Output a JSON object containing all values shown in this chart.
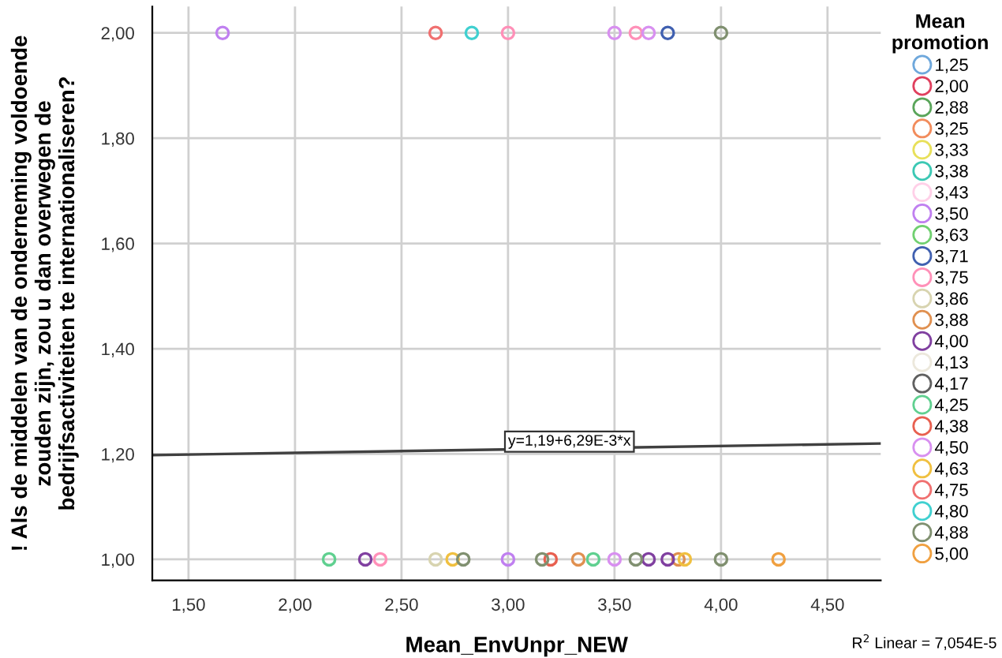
{
  "chart_data": {
    "type": "scatter",
    "xlabel": "Mean_EnvUnpr_NEW",
    "ylabel": "! Als de middelen van de onderneming voldoende zouden zijn, zou u dan overwegen de bedrijfsactiviteiten te internationaliseren?",
    "legend_title": "Mean\npromotion",
    "xlim": [
      1.33,
      4.75
    ],
    "ylim": [
      0.96,
      2.05
    ],
    "xticks": [
      {
        "value": 1.5,
        "label": "1,50"
      },
      {
        "value": 2.0,
        "label": "2,00"
      },
      {
        "value": 2.5,
        "label": "2,50"
      },
      {
        "value": 3.0,
        "label": "3,00"
      },
      {
        "value": 3.5,
        "label": "3,50"
      },
      {
        "value": 4.0,
        "label": "4,00"
      },
      {
        "value": 4.5,
        "label": "4,50"
      }
    ],
    "yticks": [
      {
        "value": 1.0,
        "label": "1,00"
      },
      {
        "value": 1.2,
        "label": "1,20"
      },
      {
        "value": 1.4,
        "label": "1,40"
      },
      {
        "value": 1.6,
        "label": "1,60"
      },
      {
        "value": 1.8,
        "label": "1,80"
      },
      {
        "value": 2.0,
        "label": "2,00"
      }
    ],
    "grid": true,
    "legend": "right",
    "marker": "circle",
    "series": [
      {
        "name": "1,25",
        "color": "#6fa8dc"
      },
      {
        "name": "2,00",
        "color": "#e0405e"
      },
      {
        "name": "2,88",
        "color": "#5aa55a"
      },
      {
        "name": "3,25",
        "color": "#f28c5c"
      },
      {
        "name": "3,33",
        "color": "#e8e05a"
      },
      {
        "name": "3,38",
        "color": "#3cc8b4"
      },
      {
        "name": "3,43",
        "color": "#ffd0e8"
      },
      {
        "name": "3,50",
        "color": "#c080f0",
        "x": [
          1.66,
          3.0
        ],
        "values": [
          2.0,
          1.0
        ]
      },
      {
        "name": "3,63",
        "color": "#70d070"
      },
      {
        "name": "3,71",
        "color": "#4060b0",
        "x": [
          3.75
        ],
        "values": [
          2.0
        ]
      },
      {
        "name": "3,75",
        "color": "#ff90b8",
        "x": [
          3.0,
          3.6,
          2.4
        ],
        "values": [
          2.0,
          2.0,
          1.0
        ]
      },
      {
        "name": "3,86",
        "color": "#d8d4b0",
        "x": [
          2.66
        ],
        "values": [
          1.0
        ]
      },
      {
        "name": "3,88",
        "color": "#e09050",
        "x": [
          3.33,
          3.8
        ],
        "values": [
          1.0,
          1.0
        ]
      },
      {
        "name": "4,00",
        "color": "#8040a0",
        "x": [
          2.33,
          3.66,
          3.75
        ],
        "values": [
          1.0,
          1.0,
          1.0
        ]
      },
      {
        "name": "4,13",
        "color": "#ece8dc"
      },
      {
        "name": "4,17",
        "color": "#606060"
      },
      {
        "name": "4,25",
        "color": "#60d090",
        "x": [
          2.16,
          3.4
        ],
        "values": [
          1.0,
          1.0
        ]
      },
      {
        "name": "4,38",
        "color": "#e86050",
        "x": [
          3.2
        ],
        "values": [
          1.0
        ]
      },
      {
        "name": "4,50",
        "color": "#d890f0",
        "x": [
          3.5,
          3.66,
          3.5
        ],
        "values": [
          2.0,
          2.0,
          1.0
        ]
      },
      {
        "name": "4,63",
        "color": "#f0c040",
        "x": [
          2.74,
          3.83
        ],
        "values": [
          1.0,
          1.0
        ]
      },
      {
        "name": "4,75",
        "color": "#f07070",
        "x": [
          2.66
        ],
        "values": [
          2.0
        ]
      },
      {
        "name": "4,80",
        "color": "#40d0d0",
        "x": [
          2.83
        ],
        "values": [
          2.0
        ]
      },
      {
        "name": "4,88",
        "color": "#809070",
        "x": [
          4.0,
          2.79,
          3.16,
          3.6,
          4.0
        ],
        "values": [
          2.0,
          1.0,
          1.0,
          1.0,
          1.0
        ]
      },
      {
        "name": "5,00",
        "color": "#f0a040",
        "x": [
          4.27
        ],
        "values": [
          1.0
        ]
      },
      {
        "type": "line",
        "color": "#404040",
        "marker": "none",
        "x": [
          1.33,
          4.75
        ],
        "values": [
          1.198,
          1.22
        ]
      }
    ],
    "annotations": [
      {
        "text": "y=1,19+6,29E-3*x",
        "x": 3.0,
        "y": 1.21
      },
      "R$^{2}$ Linear = 7,054E-5"
    ]
  }
}
